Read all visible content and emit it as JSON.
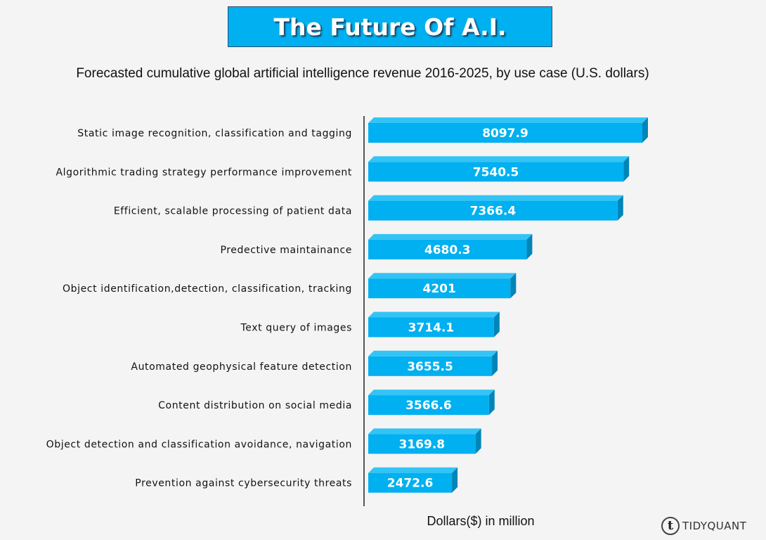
{
  "header": {
    "title": "The Future Of A.I.",
    "subtitle": "Forecasted cumulative global artificial intelligence revenue 2016-2025, by use case (U.S. dollars)"
  },
  "chart_data": {
    "type": "bar",
    "orientation": "horizontal",
    "title": "The Future Of A.I.",
    "subtitle": "Forecasted cumulative global artificial intelligence revenue 2016-2025, by use case (U.S. dollars)",
    "xlabel": "Dollars($) in million",
    "ylabel": "",
    "categories": [
      "Static image recognition, classification and tagging",
      "Algorithmic trading strategy performance improvement",
      "Efficient, scalable processing of patient data",
      "Predective maintainance",
      "Object identification,detection, classification, tracking",
      "Text query of images",
      "Automated geophysical feature detection",
      "Content distribution on social media",
      "Object detection and classification avoidance, navigation",
      "Prevention against cybersecurity threats"
    ],
    "values": [
      8097.9,
      7540.5,
      7366.4,
      4680.3,
      4201,
      3714.1,
      3655.5,
      3566.6,
      3169.8,
      2472.6
    ],
    "value_labels": [
      "8097.9",
      "7540.5",
      "7366.4",
      "4680.3",
      "4201",
      "3714.1",
      "3655.5",
      "3566.6",
      "3169.8",
      "2472.6"
    ],
    "xlim": [
      0,
      8500
    ],
    "grid": false,
    "data_labels": true,
    "bar_color": "#00b0f0",
    "bar_side_color": "#0085b8"
  },
  "branding": {
    "logo_mark": "t",
    "logo_text": "TIDYQUANT"
  },
  "colors": {
    "title_bg": "#00b0f0",
    "bar": "#00b0f0",
    "bar_depth": "#0085b8"
  }
}
